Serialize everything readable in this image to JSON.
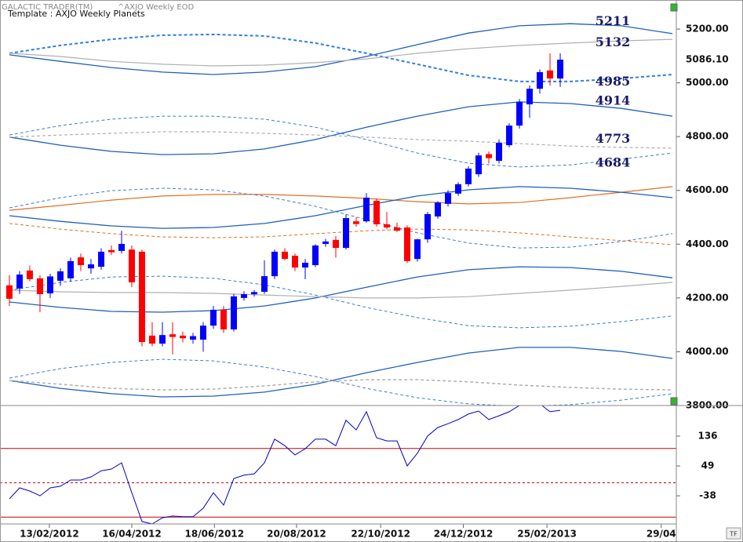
{
  "header": {
    "app": "GALACTIC TRADER(TM)",
    "instrument": "^AXJO Weekly EOD",
    "template": "Template : AXJO Weekly Planets",
    "button": "TF"
  },
  "chart_data": [
    {
      "type": "candlestick",
      "x": [
        0,
        1,
        2,
        3,
        4,
        5,
        6,
        7,
        8,
        9,
        10,
        11,
        12,
        13,
        14,
        15,
        16,
        17,
        18,
        19,
        20,
        21,
        22,
        23,
        24,
        25,
        26,
        27,
        28,
        29,
        30,
        31,
        32,
        33,
        34,
        35,
        36,
        37,
        38,
        39,
        40,
        41,
        42,
        43,
        44,
        45,
        46,
        47,
        48,
        49,
        50,
        51,
        52,
        53,
        54
      ],
      "open": [
        4247,
        4235,
        4302,
        4273,
        4217,
        4264,
        4273,
        4351,
        4310,
        4316,
        4378,
        4375,
        4380,
        4372,
        4060,
        4030,
        4065,
        4060,
        4045,
        4045,
        4097,
        4156,
        4083,
        4200,
        4214,
        4223,
        4281,
        4372,
        4357,
        4313,
        4322,
        4401,
        4416,
        4386,
        4485,
        4485,
        4561,
        4474,
        4462,
        4462,
        4345,
        4418,
        4503,
        4550,
        4588,
        4623,
        4660,
        4735,
        4710,
        4768,
        4841,
        4920,
        4978,
        5046,
        5016
      ],
      "high": [
        4285,
        4300,
        4320,
        4285,
        4290,
        4310,
        4350,
        4365,
        4345,
        4385,
        4395,
        4450,
        4395,
        4380,
        4110,
        4110,
        4110,
        4075,
        4070,
        4110,
        4170,
        4170,
        4215,
        4225,
        4230,
        4340,
        4380,
        4385,
        4365,
        4345,
        4400,
        4420,
        4430,
        4510,
        4500,
        4590,
        4570,
        4520,
        4480,
        4470,
        4420,
        4520,
        4560,
        4600,
        4630,
        4690,
        4740,
        4745,
        4790,
        4850,
        4940,
        4990,
        5050,
        5110,
        5110
      ],
      "low": [
        4170,
        4215,
        4262,
        4147,
        4200,
        4245,
        4260,
        4300,
        4290,
        4305,
        4360,
        4365,
        4240,
        4020,
        4020,
        4020,
        3990,
        4035,
        4030,
        4000,
        4085,
        4070,
        4075,
        4190,
        4205,
        4215,
        4270,
        4340,
        4300,
        4270,
        4315,
        4390,
        4350,
        4380,
        4465,
        4480,
        4465,
        4455,
        4445,
        4330,
        4335,
        4405,
        4495,
        4540,
        4580,
        4615,
        4650,
        4700,
        4700,
        4760,
        4830,
        4870,
        4960,
        4990,
        4985
      ],
      "close": [
        4197,
        4287,
        4270,
        4214,
        4280,
        4299,
        4337,
        4322,
        4325,
        4372,
        4370,
        4401,
        4258,
        4036,
        4030,
        4062,
        4055,
        4050,
        4058,
        4097,
        4156,
        4083,
        4206,
        4214,
        4222,
        4281,
        4372,
        4345,
        4313,
        4331,
        4395,
        4410,
        4386,
        4497,
        4475,
        4573,
        4474,
        4462,
        4450,
        4337,
        4418,
        4512,
        4555,
        4590,
        4623,
        4681,
        4730,
        4720,
        4777,
        4841,
        4929,
        4978,
        5040,
        5016,
        5086.1
      ],
      "up_color": "#0000ff",
      "down_color": "#ff0000",
      "last_price": {
        "value": 5086.1,
        "label": "5086.10"
      },
      "xlim": [
        -0.92,
        65.38
      ],
      "xticks": [
        {
          "value": 3.92,
          "label": "13/02/2012"
        },
        {
          "value": 12,
          "label": "16/04/2012"
        },
        {
          "value": 20.1,
          "label": "18/06/2012"
        },
        {
          "value": 28.15,
          "label": "20/08/2012"
        },
        {
          "value": 36.4,
          "label": "22/10/2012"
        },
        {
          "value": 44.5,
          "label": "24/12/2012"
        },
        {
          "value": 52.7,
          "label": "25/02/2013"
        },
        {
          "value": 63.9,
          "label": "29/04"
        }
      ],
      "ylim": [
        3800,
        5308
      ],
      "yticks": [
        {
          "value": 3800,
          "label": "3800.00"
        },
        {
          "value": 4000,
          "label": "4000.00"
        },
        {
          "value": 4200,
          "label": "4200.00"
        },
        {
          "value": 4400,
          "label": "4400.00"
        },
        {
          "value": 4600,
          "label": "4600.00"
        },
        {
          "value": 4800,
          "label": "4800.00"
        },
        {
          "value": 5000,
          "label": "5000.00"
        },
        {
          "value": 5200,
          "label": "5200.00"
        }
      ],
      "levels": [
        5211,
        5132,
        4985,
        4914,
        4773,
        4684
      ],
      "planet_lines": {
        "x": [
          0,
          5,
          10,
          15,
          20,
          25,
          30,
          35,
          40,
          45,
          50,
          55,
          60,
          65
        ],
        "series": [
          {
            "color": "#1f5fbf",
            "dash": false,
            "width": 1.3,
            "values": [
              5104,
              5080,
              5057,
              5040,
              5031,
              5040,
              5060,
              5098,
              5142,
              5185,
              5212,
              5220,
              5212,
              5183
            ]
          },
          {
            "color": "#2f7fe0",
            "dash": true,
            "width": 2,
            "values": [
              5110,
              5139,
              5162,
              5177,
              5180,
              5174,
              5148,
              5110,
              5069,
              5028,
              5005,
              5005,
              5016,
              5031
            ]
          },
          {
            "color": "#b0b0b0",
            "dash": false,
            "width": 1.2,
            "values": [
              5110,
              5098,
              5080,
              5069,
              5063,
              5066,
              5075,
              5089,
              5110,
              5127,
              5139,
              5148,
              5156,
              5162
            ]
          },
          {
            "color": "#3a7fd5",
            "dash": true,
            "width": 1,
            "values": [
              4806,
              4841,
              4865,
              4876,
              4876,
              4865,
              4835,
              4789,
              4739,
              4701,
              4687,
              4695,
              4716,
              4739
            ]
          },
          {
            "color": "#1f5fbf",
            "dash": false,
            "width": 1.3,
            "values": [
              4798,
              4768,
              4745,
              4733,
              4736,
              4754,
              4789,
              4835,
              4876,
              4911,
              4929,
              4923,
              4905,
              4876
            ]
          },
          {
            "color": "#b0b0b0",
            "dash": true,
            "width": 1.2,
            "values": [
              4798,
              4806,
              4812,
              4818,
              4818,
              4812,
              4806,
              4798,
              4789,
              4783,
              4774,
              4765,
              4760,
              4757
            ]
          },
          {
            "color": "#e07020",
            "dash": false,
            "width": 1.2,
            "values": [
              4526,
              4544,
              4564,
              4579,
              4585,
              4585,
              4579,
              4570,
              4558,
              4550,
              4555,
              4573,
              4593,
              4614
            ]
          },
          {
            "color": "#1f5fbf",
            "dash": false,
            "width": 1.3,
            "values": [
              4506,
              4485,
              4468,
              4459,
              4462,
              4477,
              4506,
              4544,
              4579,
              4602,
              4614,
              4608,
              4593,
              4573
            ]
          },
          {
            "color": "#3a7fd5",
            "dash": true,
            "width": 1,
            "values": [
              4535,
              4573,
              4599,
              4608,
              4602,
              4579,
              4541,
              4491,
              4442,
              4404,
              4386,
              4389,
              4410,
              4439
            ]
          },
          {
            "color": "#e07020",
            "dash": true,
            "width": 1,
            "values": [
              4477,
              4456,
              4439,
              4427,
              4424,
              4427,
              4439,
              4450,
              4456,
              4453,
              4442,
              4427,
              4413,
              4398
            ]
          },
          {
            "color": "#1f5fbf",
            "dash": false,
            "width": 1.3,
            "values": [
              4185,
              4165,
              4150,
              4147,
              4153,
              4170,
              4200,
              4240,
              4278,
              4305,
              4316,
              4313,
              4299,
              4275
            ]
          },
          {
            "color": "#3a7fd5",
            "dash": true,
            "width": 1,
            "values": [
              4229,
              4258,
              4278,
              4281,
              4273,
              4249,
              4211,
              4165,
              4127,
              4097,
              4089,
              4095,
              4112,
              4133
            ]
          },
          {
            "color": "#b0b0b0",
            "dash": false,
            "width": 1.2,
            "values": [
              4229,
              4223,
              4220,
              4220,
              4217,
              4211,
              4205,
              4200,
              4200,
              4205,
              4217,
              4229,
              4243,
              4258
            ]
          },
          {
            "color": "#1f5fbf",
            "dash": false,
            "width": 1.3,
            "values": [
              3893,
              3864,
              3844,
              3832,
              3835,
              3850,
              3879,
              3922,
              3960,
              3995,
              4016,
              4016,
              4001,
              3975
            ]
          },
          {
            "color": "#3a7fd5",
            "dash": true,
            "width": 1,
            "values": [
              3902,
              3937,
              3960,
              3972,
              3966,
              3943,
              3908,
              3864,
              3829,
              3806,
              3797,
              3803,
              3820,
              3844
            ]
          },
          {
            "color": "#b0b0b0",
            "dash": true,
            "width": 1.5,
            "values": [
              3893,
              3879,
              3864,
              3858,
              3861,
              3873,
              3888,
              3896,
              3896,
              3888,
              3876,
              3867,
              3861,
              3858
            ]
          }
        ]
      }
    },
    {
      "type": "line",
      "x": [
        0,
        1,
        2,
        3,
        4,
        5,
        6,
        7,
        8,
        9,
        10,
        11,
        12,
        13,
        14,
        15,
        16,
        17,
        18,
        19,
        20,
        21,
        22,
        23,
        24,
        25,
        26,
        27,
        28,
        29,
        30,
        31,
        32,
        33,
        34,
        35,
        36,
        37,
        38,
        39,
        40,
        41,
        42,
        43,
        44,
        45,
        46,
        47,
        48,
        49,
        50,
        51,
        52,
        53,
        54
      ],
      "values": [
        -47,
        -15,
        -24,
        -38,
        -15,
        -10,
        8,
        8,
        17,
        35,
        40,
        58,
        -29,
        -113,
        -120,
        -102,
        -97,
        -99,
        -99,
        -74,
        -29,
        -65,
        12,
        22,
        26,
        58,
        127,
        108,
        81,
        99,
        127,
        127,
        108,
        182,
        154,
        207,
        131,
        122,
        122,
        49,
        86,
        136,
        161,
        172,
        184,
        200,
        209,
        184,
        195,
        207,
        225,
        230,
        230,
        207,
        211
      ],
      "color": "#0000cc",
      "xlim": [
        -0.92,
        65.38
      ],
      "ylim": [
        -120,
        225
      ],
      "yticks": [
        136,
        49,
        -38
      ],
      "levels": [
        100,
        0,
        -100
      ],
      "level_dash": [
        false,
        true,
        false
      ],
      "level_color": "#cc0000"
    }
  ]
}
